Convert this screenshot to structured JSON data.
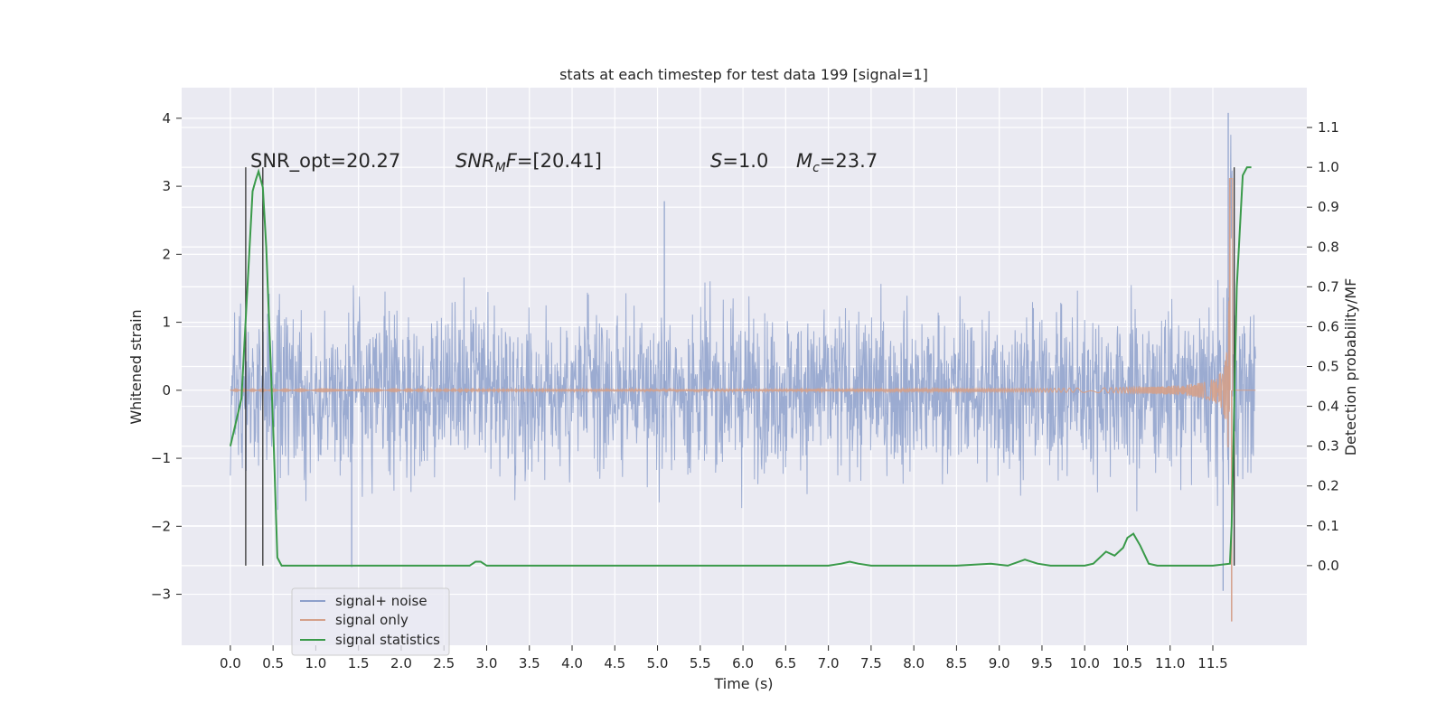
{
  "chart_data": {
    "type": "line",
    "title": "stats at each timestep for test data 199 [signal=1]",
    "xlabel": "Time (s)",
    "ylabel": "Whitened strain",
    "ylabel_right": "Detection probability/MF",
    "xlim": [
      -0.57,
      12.6
    ],
    "ylim": [
      -3.75,
      4.45
    ],
    "ylim_right": [
      -0.2,
      1.2
    ],
    "x_ticks": [
      "0.0",
      "0.5",
      "1.0",
      "1.5",
      "2.0",
      "2.5",
      "3.0",
      "3.5",
      "4.0",
      "4.5",
      "5.0",
      "5.5",
      "6.0",
      "6.5",
      "7.0",
      "7.5",
      "8.0",
      "8.5",
      "9.0",
      "9.5",
      "10.0",
      "10.5",
      "11.0",
      "11.5"
    ],
    "y_ticks": [
      "4",
      "3",
      "2",
      "1",
      "0",
      "−1",
      "−2",
      "−3"
    ],
    "y_tick_values": [
      4,
      3,
      2,
      1,
      0,
      -1,
      -2,
      -3
    ],
    "y_right_ticks": [
      "1.1",
      "1.0",
      "0.9",
      "0.8",
      "0.7",
      "0.6",
      "0.5",
      "0.4",
      "0.3",
      "0.2",
      "0.1",
      "0.0"
    ],
    "y_right_tick_values": [
      1.1,
      1.0,
      0.9,
      0.8,
      0.7,
      0.6,
      0.5,
      0.4,
      0.3,
      0.2,
      0.1,
      0.0
    ],
    "grid": true,
    "legend_placement": "lower-left",
    "series": [
      {
        "name": "signal+ noise",
        "color": "#8da0cb",
        "axis": "left",
        "kind": "noisy-strain",
        "x_range": [
          0.0,
          12.0
        ],
        "typical_amplitude": 1.5,
        "min": -2.95,
        "max": 4.08
      },
      {
        "name": "signal only",
        "color": "#d4a08a",
        "axis": "left",
        "kind": "chirp",
        "x_range": [
          0.0,
          12.0
        ],
        "peak_time": 11.7,
        "peak_max": 3.1,
        "peak_min": -3.4
      },
      {
        "name": "signal statistics",
        "color": "#3a9a4a",
        "axis": "right",
        "x": [
          0.0,
          0.13,
          0.26,
          0.3,
          0.33,
          0.38,
          0.42,
          0.5,
          0.55,
          0.6,
          1.0,
          2.0,
          2.8,
          2.87,
          2.93,
          3.0,
          4.0,
          5.0,
          6.0,
          6.6,
          7.0,
          7.15,
          7.25,
          7.35,
          7.5,
          8.0,
          8.5,
          8.9,
          9.1,
          9.3,
          9.45,
          9.6,
          10.0,
          10.1,
          10.25,
          10.35,
          10.45,
          10.5,
          10.57,
          10.65,
          10.75,
          10.85,
          11.0,
          11.5,
          11.7,
          11.72,
          11.78,
          11.85,
          11.9,
          11.95
        ],
        "values": [
          0.3,
          0.42,
          0.94,
          0.97,
          0.99,
          0.95,
          0.8,
          0.35,
          0.02,
          0.0,
          0.0,
          0.0,
          0.0,
          0.01,
          0.01,
          0.0,
          0.0,
          0.0,
          0.0,
          0.0,
          0.0,
          0.005,
          0.01,
          0.005,
          0.0,
          0.0,
          0.0,
          0.005,
          0.0,
          0.015,
          0.005,
          0.0,
          0.0,
          0.005,
          0.035,
          0.025,
          0.045,
          0.07,
          0.08,
          0.05,
          0.005,
          0.0,
          0.0,
          0.0,
          0.005,
          0.1,
          0.7,
          0.98,
          1.0,
          1.0
        ]
      }
    ],
    "vertical_markers": [
      {
        "x": 0.18,
        "color": "#333333",
        "y_from": 0.0,
        "y_to": 1.0
      },
      {
        "x": 0.38,
        "color": "#333333",
        "y_from": 0.0,
        "y_to": 1.0
      },
      {
        "x": 11.75,
        "color": "#333333",
        "y_from": 0.0,
        "y_to": 1.0
      }
    ],
    "annotations": [
      {
        "text": "SNR_opt=20.27"
      },
      {
        "text": "SNR_MF=[20.41]"
      },
      {
        "text": "S=1.0"
      },
      {
        "text": "M_c=23.7"
      }
    ]
  }
}
